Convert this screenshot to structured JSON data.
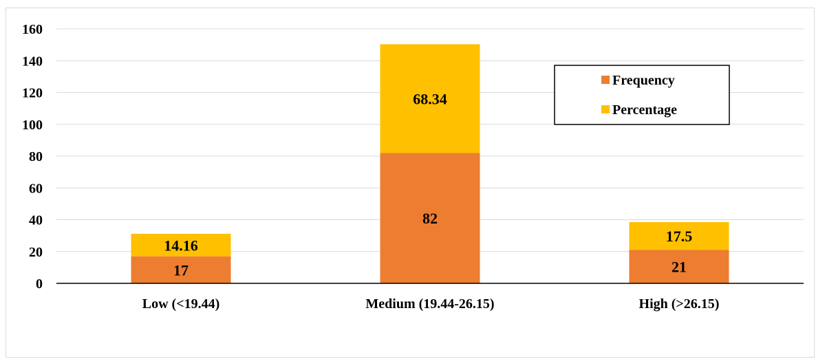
{
  "chart_data": {
    "type": "bar",
    "stacked": true,
    "categories": [
      "Low (<19.44)",
      "Medium (19.44-26.15)",
      "High (>26.15)"
    ],
    "series": [
      {
        "name": "Frequency",
        "values": [
          17,
          82,
          21
        ],
        "color": "#ED7D31"
      },
      {
        "name": "Percentage",
        "values": [
          14.16,
          68.34,
          17.5
        ],
        "color": "#FFC000"
      }
    ],
    "yticks": [
      "0",
      "20",
      "40",
      "60",
      "80",
      "100",
      "120",
      "140",
      "160"
    ],
    "ylim": [
      0,
      160
    ],
    "grid": true,
    "legend_position": "top-right",
    "title": "",
    "xlabel": "",
    "ylabel": ""
  }
}
